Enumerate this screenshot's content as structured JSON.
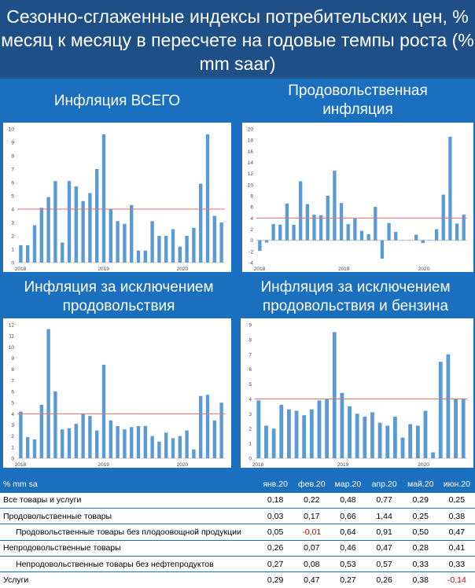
{
  "page": {
    "title": "Сезонно-сглаженные индексы потребительских цен, % месяц к месяцу в пересчете на годовые темпы роста (% mm saar)"
  },
  "colors": {
    "header_bg": "#1e4f86",
    "panel_bg": "#1a6fbf",
    "bar": "#5b9bd5",
    "ref_line": "#e07070",
    "negative_text": "#d00000"
  },
  "chart_data": [
    {
      "type": "bar",
      "title": "Инфляция ВСЕГО",
      "x_tick_labels": [
        "2018",
        "2019",
        "2020"
      ],
      "ylim": [
        0,
        10
      ],
      "y_ticks": [
        0,
        1,
        2,
        3,
        4,
        5,
        6,
        7,
        8,
        9,
        10
      ],
      "reference_line": 4,
      "values": [
        1.3,
        1.3,
        2.8,
        4.1,
        4.9,
        6.1,
        1.5,
        6.1,
        5.7,
        4.6,
        5.2,
        7.0,
        9.6,
        4.0,
        3.1,
        2.9,
        4.3,
        0.9,
        0.9,
        3.1,
        2.0,
        2.0,
        2.5,
        1.2,
        2.0,
        2.6,
        5.9,
        9.6,
        3.5,
        3.0
      ]
    },
    {
      "type": "bar",
      "title": "Продовольственная инфляция",
      "x_tick_labels": [
        "2018",
        "2019",
        "2020"
      ],
      "ylim": [
        -4,
        20
      ],
      "y_ticks": [
        -4,
        -2,
        0,
        2,
        4,
        6,
        8,
        10,
        12,
        14,
        16,
        18,
        20
      ],
      "reference_line": 4,
      "values": [
        -1.9,
        -0.4,
        2.9,
        2.8,
        6.6,
        2.8,
        10.6,
        6.5,
        4.6,
        4.5,
        8.0,
        12.5,
        6.7,
        2.9,
        3.9,
        1.7,
        1.1,
        6.0,
        -3.3,
        3.1,
        1.5,
        0.0,
        0.0,
        1.0,
        -0.5,
        0.0,
        2.0,
        8.2,
        18.6,
        3.0,
        4.6
      ]
    },
    {
      "type": "bar",
      "title": "Инфляция за исключением продовольствия",
      "x_tick_labels": [
        "2018",
        "2019",
        "2020"
      ],
      "ylim": [
        0,
        12
      ],
      "y_ticks": [
        0,
        1,
        2,
        3,
        4,
        5,
        6,
        7,
        8,
        9,
        10,
        11,
        12
      ],
      "reference_line": 4,
      "values": [
        4.2,
        1.9,
        1.7,
        4.8,
        11.6,
        6.0,
        2.6,
        2.7,
        3.1,
        4.0,
        3.8,
        2.5,
        8.4,
        3.4,
        2.9,
        2.6,
        2.8,
        2.9,
        2.9,
        2.0,
        1.5,
        2.3,
        1.8,
        2.0,
        2.5,
        0.8,
        5.6,
        5.7,
        3.4,
        5.0
      ]
    },
    {
      "type": "bar",
      "title": "Инфляция за исключением продовольствия и бензина",
      "x_tick_labels": [
        "2018",
        "2019",
        "2020"
      ],
      "ylim": [
        0,
        9
      ],
      "y_ticks": [
        0,
        1,
        2,
        3,
        4,
        5,
        6,
        7,
        8,
        9
      ],
      "reference_line": 4,
      "values": [
        3.9,
        2.2,
        2.0,
        3.6,
        3.3,
        3.2,
        2.9,
        3.3,
        3.9,
        4.0,
        8.5,
        4.4,
        3.5,
        3.0,
        2.8,
        3.1,
        2.4,
        2.2,
        2.8,
        1.4,
        2.3,
        2.2,
        3.2,
        0.4,
        6.5,
        7.0,
        4.0,
        4.0
      ]
    }
  ],
  "table": {
    "header_label": "% mm sa",
    "columns": [
      "янв.20",
      "фев.20",
      "мар.20",
      "апр.20",
      "май.20",
      "июн.20"
    ],
    "rows": [
      {
        "label": "Все товары и услуги",
        "indent": false,
        "values": [
          "0,18",
          "0,22",
          "0,48",
          "0,77",
          "0,29",
          "0,25"
        ]
      },
      {
        "label": "Продовольственные товары",
        "indent": false,
        "values": [
          "0,03",
          "0,17",
          "0,66",
          "1,44",
          "0,25",
          "0,38"
        ]
      },
      {
        "label": "Продовольственные товары без плодоовощной продукции",
        "indent": true,
        "values": [
          "0,05",
          "-0,01",
          "0,64",
          "0,91",
          "0,50",
          "0,47"
        ]
      },
      {
        "label": "Непродовольственные товары",
        "indent": false,
        "values": [
          "0,26",
          "0,07",
          "0,46",
          "0,47",
          "0,28",
          "0,41"
        ]
      },
      {
        "label": "Непродовольственные товары без нефтепродуктов",
        "indent": true,
        "values": [
          "0,27",
          "0,08",
          "0,53",
          "0,57",
          "0,33",
          "0,33"
        ]
      },
      {
        "label": "Услуги",
        "indent": false,
        "values": [
          "0,29",
          "0,47",
          "0,27",
          "0,26",
          "0,38",
          "-0,14"
        ]
      }
    ]
  }
}
